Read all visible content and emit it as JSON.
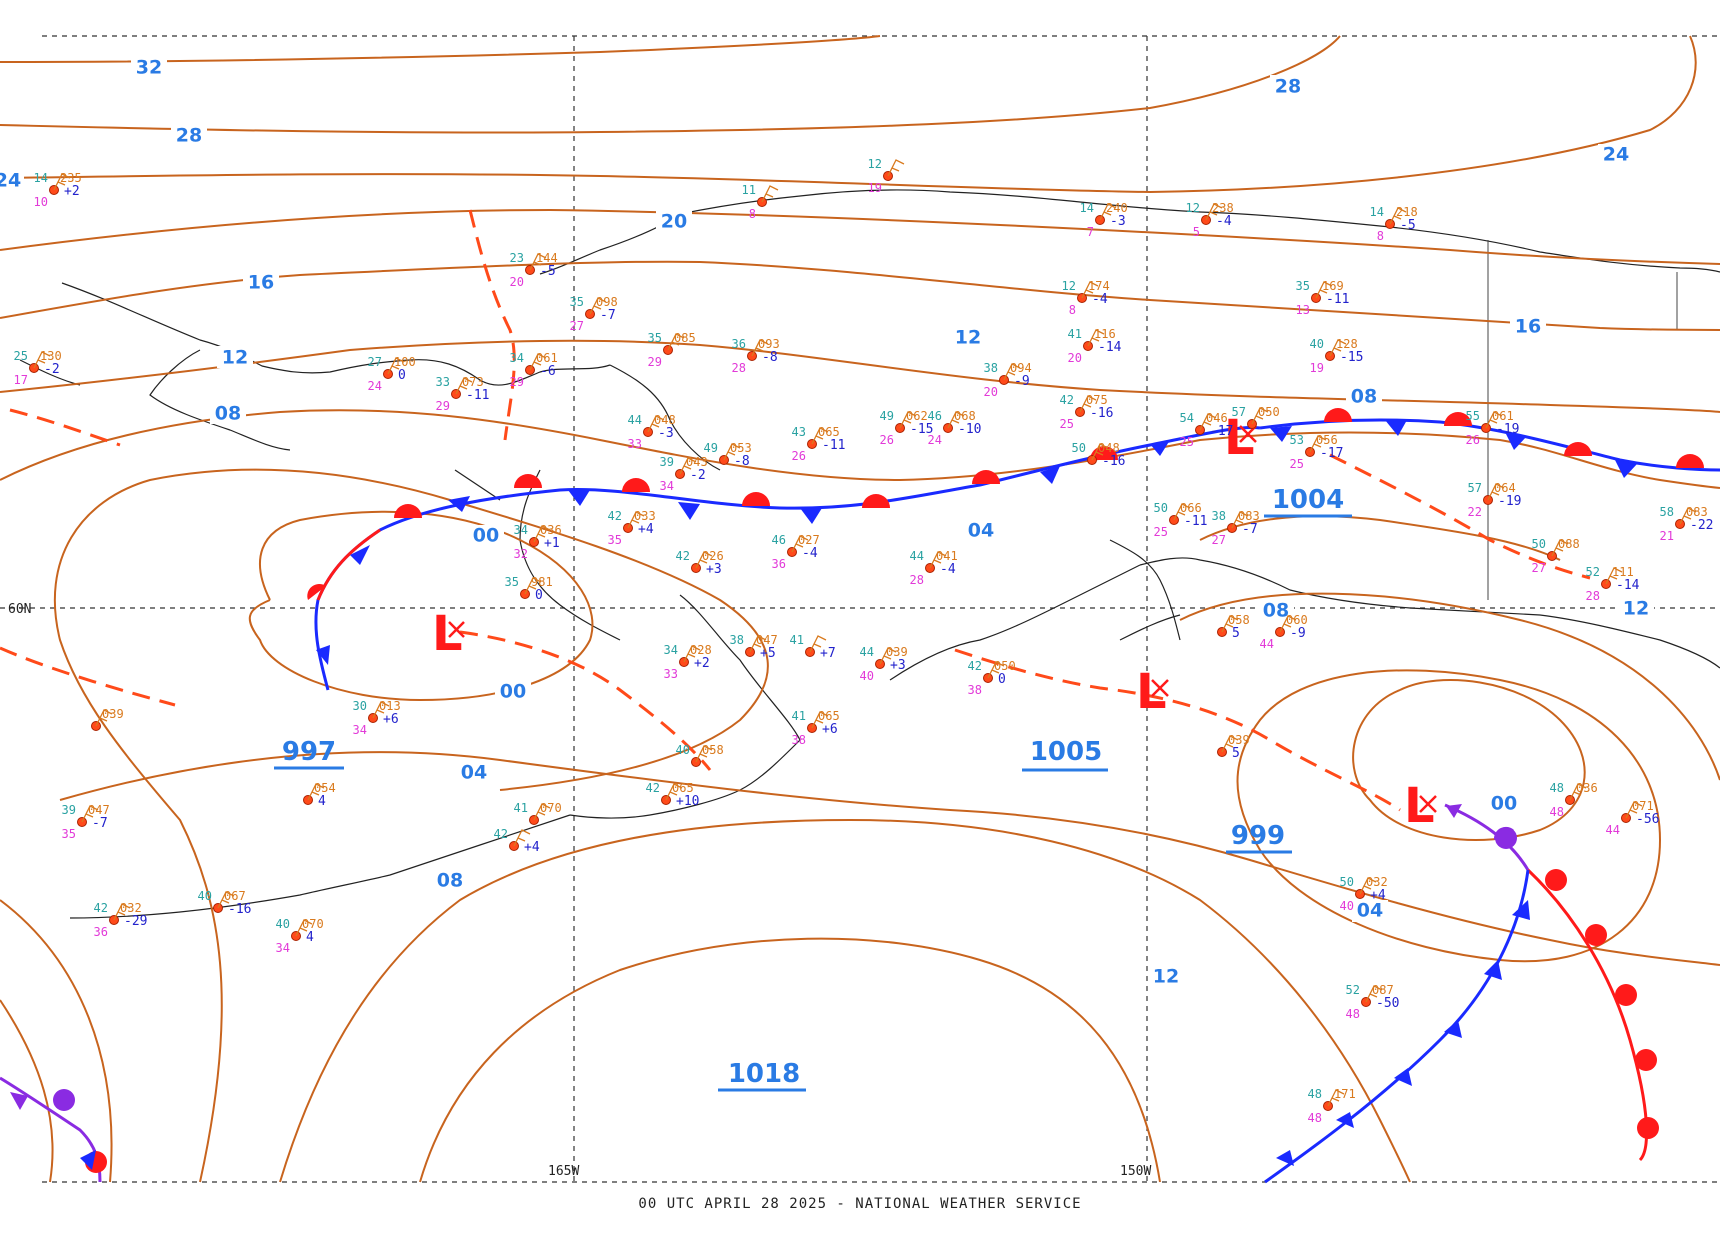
{
  "footer": "00 UTC APRIL 28 2025 - NATIONAL WEATHER SERVICE",
  "grid_labels": {
    "lat_60n": "60N",
    "lon_165w": "165W",
    "lon_150w": "150W"
  },
  "colors": {
    "isobar": "#c8641e",
    "isobar_label": "#2a7be4",
    "low_symbol": "#ff1a1a",
    "warm_front": "#ff1a1a",
    "cold_front": "#1a2aff",
    "occluded_front": "#8a2be2",
    "trough": "#ff4a1a"
  },
  "isobar_labels": [
    "32",
    "28",
    "24",
    "20",
    "16",
    "12",
    "08",
    "04",
    "00"
  ],
  "pressure_centers": [
    {
      "type": "low",
      "label": "L",
      "value": "997"
    },
    {
      "type": "low",
      "label": "L",
      "value": "1004"
    },
    {
      "type": "low",
      "label": "L",
      "value": "1005"
    },
    {
      "type": "low",
      "label": "L",
      "value": "999"
    },
    {
      "type": "high",
      "label": "",
      "value": "1018"
    }
  ],
  "stations": [
    {
      "t": "14",
      "p": "235",
      "td": "10",
      "tend": "+2"
    },
    {
      "t": "12",
      "p": "",
      "td": "19",
      "tend": ""
    },
    {
      "t": "11",
      "p": "",
      "td": "8",
      "tend": ""
    },
    {
      "t": "14",
      "p": "240",
      "td": "7",
      "tend": "-3"
    },
    {
      "t": "12",
      "p": "238",
      "td": "5",
      "tend": "-4"
    },
    {
      "t": "14",
      "p": "218",
      "td": "8",
      "tend": "-5"
    },
    {
      "t": "23",
      "p": "144",
      "td": "20",
      "tend": "-5"
    },
    {
      "t": "35",
      "p": "098",
      "td": "27",
      "tend": "-7"
    },
    {
      "t": "35",
      "p": "085",
      "td": "29",
      "tend": ""
    },
    {
      "t": "36",
      "p": "093",
      "td": "28",
      "tend": "-8"
    },
    {
      "t": "25",
      "p": "130",
      "td": "17",
      "tend": "-2"
    },
    {
      "t": "27",
      "p": "100",
      "td": "24",
      "tend": "0"
    },
    {
      "t": "33",
      "p": "073",
      "td": "29",
      "tend": "-11"
    },
    {
      "t": "34",
      "p": "061",
      "td": "29",
      "tend": "-6"
    },
    {
      "t": "12",
      "p": "174",
      "td": "8",
      "tend": "-4"
    },
    {
      "t": "41",
      "p": "116",
      "td": "20",
      "tend": "-14"
    },
    {
      "t": "35",
      "p": "169",
      "td": "13",
      "tend": "-11"
    },
    {
      "t": "40",
      "p": "128",
      "td": "19",
      "tend": "-15"
    },
    {
      "t": "38",
      "p": "094",
      "td": "20",
      "tend": "-9"
    },
    {
      "t": "42",
      "p": "075",
      "td": "25",
      "tend": "-16"
    },
    {
      "t": "44",
      "p": "048",
      "td": "33",
      "tend": "-3"
    },
    {
      "t": "43",
      "p": "065",
      "td": "26",
      "tend": "-11"
    },
    {
      "t": "49",
      "p": "062",
      "td": "26",
      "tend": "-15"
    },
    {
      "t": "46",
      "p": "068",
      "td": "24",
      "tend": "-10"
    },
    {
      "t": "49",
      "p": "053",
      "td": "",
      "tend": "-8"
    },
    {
      "t": "39",
      "p": "043",
      "td": "34",
      "tend": "-2"
    },
    {
      "t": "50",
      "p": "048",
      "td": "",
      "tend": "-16"
    },
    {
      "t": "54",
      "p": "046",
      "td": "25",
      "tend": "-17"
    },
    {
      "t": "57",
      "p": "050",
      "td": "",
      "tend": ""
    },
    {
      "t": "53",
      "p": "056",
      "td": "25",
      "tend": "-17"
    },
    {
      "t": "55",
      "p": "061",
      "td": "26",
      "tend": "-19"
    },
    {
      "t": "57",
      "p": "064",
      "td": "22",
      "tend": "-19"
    },
    {
      "t": "58",
      "p": "083",
      "td": "21",
      "tend": "-22"
    },
    {
      "t": "34",
      "p": "036",
      "td": "32",
      "tend": "+1"
    },
    {
      "t": "42",
      "p": "033",
      "td": "35",
      "tend": "+4"
    },
    {
      "t": "46",
      "p": "027",
      "td": "36",
      "tend": "-4"
    },
    {
      "t": "42",
      "p": "026",
      "td": "",
      "tend": "+3"
    },
    {
      "t": "44",
      "p": "041",
      "td": "28",
      "tend": "-4"
    },
    {
      "t": "50",
      "p": "066",
      "td": "25",
      "tend": "-11"
    },
    {
      "t": "38",
      "p": "083",
      "td": "27",
      "tend": "-7"
    },
    {
      "t": "50",
      "p": "088",
      "td": "27",
      "tend": ""
    },
    {
      "t": "52",
      "p": "111",
      "td": "28",
      "tend": "-14"
    },
    {
      "t": "35",
      "p": "981",
      "td": "",
      "tend": "0"
    },
    {
      "t": "30",
      "p": "013",
      "td": "34",
      "tend": "+6"
    },
    {
      "t": "",
      "p": "039",
      "td": "",
      "tend": ""
    },
    {
      "t": "38",
      "p": "047",
      "td": "",
      "tend": "+5"
    },
    {
      "t": "41",
      "p": "",
      "td": "",
      "tend": "+7"
    },
    {
      "t": "44",
      "p": "039",
      "td": "40",
      "tend": "+3"
    },
    {
      "t": "34",
      "p": "028",
      "td": "33",
      "tend": "+2"
    },
    {
      "t": "42",
      "p": "050",
      "td": "38",
      "tend": "0"
    },
    {
      "t": "41",
      "p": "065",
      "td": "38",
      "tend": "+6"
    },
    {
      "t": "40",
      "p": "058",
      "td": "",
      "tend": ""
    },
    {
      "t": "",
      "p": "054",
      "td": "",
      "tend": "4"
    },
    {
      "t": "39",
      "p": "047",
      "td": "35",
      "tend": "-7"
    },
    {
      "t": "42",
      "p": "065",
      "td": "",
      "tend": "+10"
    },
    {
      "t": "41",
      "p": "070",
      "td": "",
      "tend": ""
    },
    {
      "t": "42",
      "p": "",
      "td": "",
      "tend": "+4"
    },
    {
      "t": "40",
      "p": "067",
      "td": "",
      "tend": "-16"
    },
    {
      "t": "42",
      "p": "032",
      "td": "36",
      "tend": "-29"
    },
    {
      "t": "40",
      "p": "070",
      "td": "34",
      "tend": "4"
    },
    {
      "t": "50",
      "p": "032",
      "td": "40",
      "tend": "+4"
    },
    {
      "t": "52",
      "p": "087",
      "td": "48",
      "tend": "-50"
    },
    {
      "t": "48",
      "p": "171",
      "td": "48",
      "tend": ""
    },
    {
      "t": "48",
      "p": "036",
      "td": "48",
      "tend": ""
    },
    {
      "t": "",
      "p": "071",
      "td": "44",
      "tend": "-56"
    },
    {
      "t": "",
      "p": "039",
      "td": "",
      "tend": "5"
    },
    {
      "t": "",
      "p": "060",
      "td": "44",
      "tend": "-9"
    },
    {
      "t": "",
      "p": "058",
      "td": "",
      "tend": "5"
    }
  ]
}
